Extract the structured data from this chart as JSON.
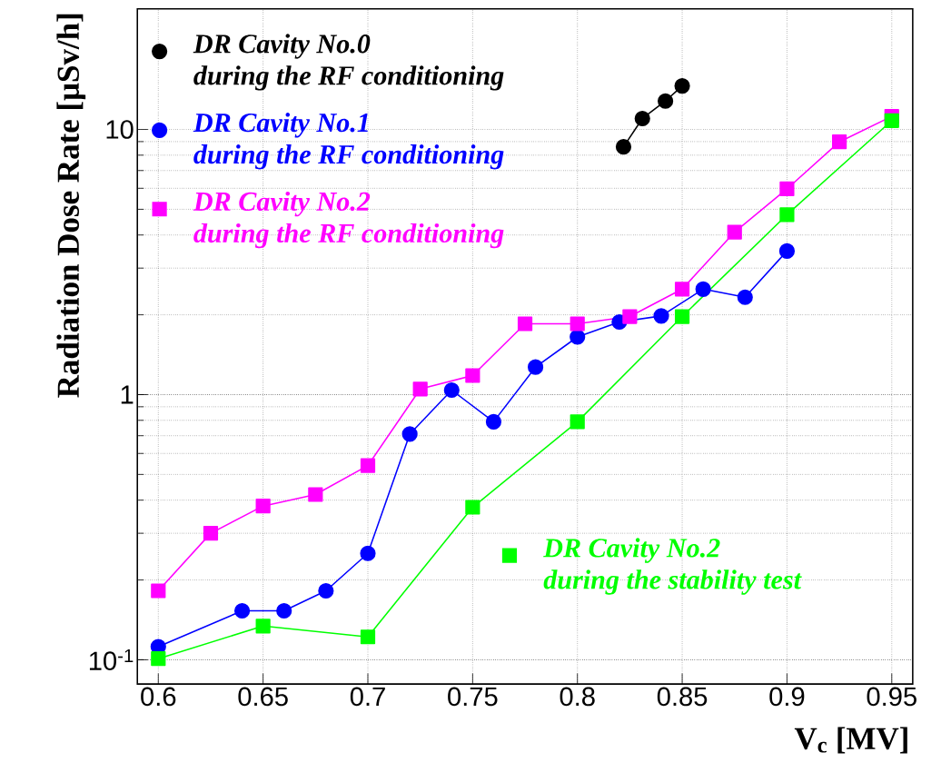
{
  "chart_data": {
    "type": "line",
    "xlabel": "V$_{c}$   [MV]",
    "ylabel": "Radiation Dose Rate   [μSv/h]",
    "log": "y",
    "grid": true,
    "legend": "top left",
    "line_style": "solid",
    "xlim": [
      0.59,
      0.96
    ],
    "ylim": [
      0.081,
      28.5
    ],
    "xticks": [
      0.6,
      0.65,
      0.7,
      0.75,
      0.8,
      0.85,
      0.9,
      0.95
    ],
    "yticks": [
      {
        "value": 0.1,
        "label": "10$^{-1}$"
      },
      1,
      10
    ],
    "series": [
      {
        "name": "DR Cavity No.0\nduring the RF conditioning",
        "color": "#000000",
        "marker": "circle",
        "x": [
          0.822,
          0.831,
          0.842,
          0.85
        ],
        "values": [
          8.6,
          11,
          12.8,
          14.6
        ]
      },
      {
        "name": "DR Cavity No.1\nduring the RF conditioning",
        "color": "#0000ff",
        "marker": "circle",
        "x": [
          0.6,
          0.64,
          0.66,
          0.68,
          0.7,
          0.72,
          0.74,
          0.76,
          0.78,
          0.8,
          0.82,
          0.84,
          0.86,
          0.88,
          0.9
        ],
        "values": [
          0.112,
          0.153,
          0.153,
          0.182,
          0.252,
          0.71,
          1.04,
          0.79,
          1.27,
          1.65,
          1.88,
          1.98,
          2.5,
          2.33,
          3.48
        ]
      },
      {
        "name": "DR Cavity No.2\nduring the RF conditioning",
        "color": "#ff00ff",
        "marker": "square",
        "x": [
          0.6,
          0.625,
          0.65,
          0.675,
          0.7,
          0.725,
          0.75,
          0.775,
          0.8,
          0.825,
          0.85,
          0.875,
          0.9,
          0.925,
          0.95
        ],
        "values": [
          0.182,
          0.3,
          0.38,
          0.42,
          0.54,
          1.05,
          1.18,
          1.85,
          1.85,
          1.97,
          2.5,
          4.1,
          5.97,
          8.98,
          11.2
        ]
      },
      {
        "name": "DR Cavity No.2\nduring the stability test",
        "color": "#00ff00",
        "marker": "square",
        "x": [
          0.6,
          0.65,
          0.7,
          0.75,
          0.8,
          0.85,
          0.9,
          0.95
        ],
        "values": [
          0.101,
          0.134,
          0.122,
          0.376,
          0.79,
          1.97,
          4.77,
          10.8
        ]
      }
    ]
  }
}
